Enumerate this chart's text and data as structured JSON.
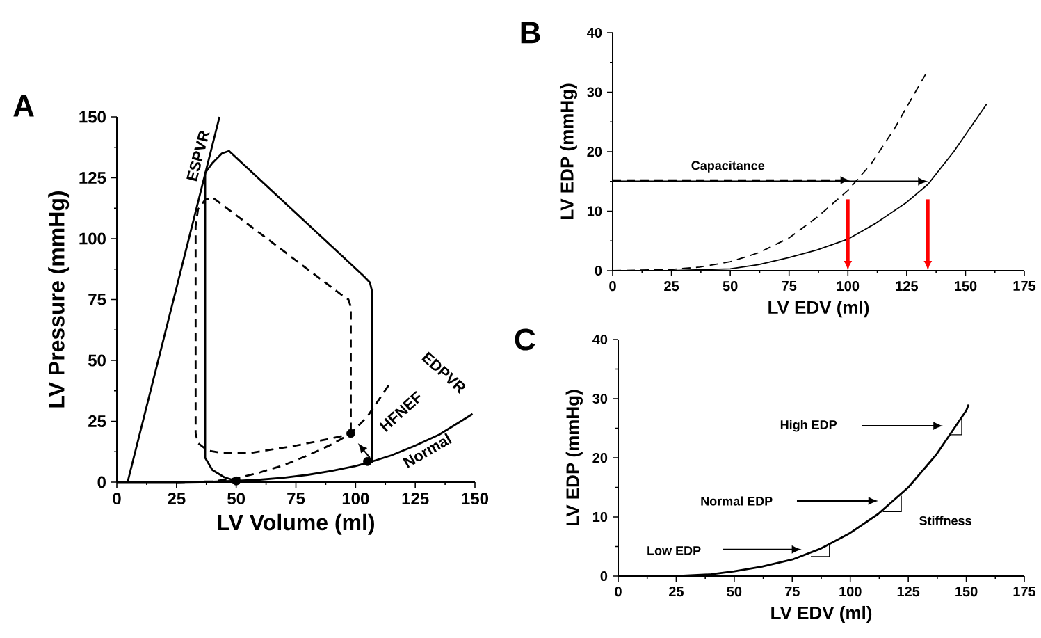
{
  "chart_data": [
    {
      "type": "line",
      "title": "A",
      "xlabel": "LV Volume (ml)",
      "ylabel": "LV Pressure (mmHg)",
      "xlim": [
        0,
        150
      ],
      "ylim": [
        0,
        150
      ],
      "xticks": [
        0,
        25,
        50,
        75,
        100,
        125,
        150
      ],
      "yticks": [
        0,
        25,
        50,
        75,
        100,
        125,
        150
      ],
      "series": [
        {
          "color": "#000000",
          "line_style": "solid",
          "x": [
            4.5,
            43
          ],
          "values": [
            0,
            150
          ]
        },
        {
          "color": "#000000",
          "line_style": "solid",
          "x": [
            0,
            25,
            40,
            50,
            60,
            70,
            80,
            90,
            100,
            107,
            115,
            125,
            135,
            149
          ],
          "values": [
            0,
            0,
            0.2,
            0.5,
            1,
            1.8,
            3,
            4.6,
            6.6,
            8.5,
            11,
            15,
            19.5,
            28
          ]
        },
        {
          "color": "#000000",
          "line_style": "dashed",
          "x": [
            25,
            40,
            50,
            60,
            70,
            80,
            90,
            98,
            105,
            114
          ],
          "values": [
            0,
            0.3,
            1.5,
            4,
            7,
            11,
            15.5,
            20,
            27,
            40
          ]
        },
        {
          "type": "scatter",
          "color": "#000000",
          "x": [
            50,
            98,
            105
          ],
          "values": [
            0.5,
            20,
            8.5
          ]
        },
        {
          "color": "#000000",
          "line_style": "solid",
          "x": [
            107,
            107,
            106,
            103,
            47,
            44,
            40,
            37,
            37,
            40,
            45,
            50
          ],
          "values": [
            8,
            78,
            82,
            85,
            136,
            135,
            131,
            127,
            10,
            5,
            2,
            0.5
          ]
        },
        {
          "color": "#000000",
          "line_style": "dashed",
          "x": [
            98,
            98,
            97,
            94,
            40,
            37,
            34,
            33,
            33,
            34,
            38,
            44,
            56,
            75,
            90,
            97
          ],
          "values": [
            21,
            72,
            75,
            77,
            117,
            116,
            112,
            105,
            20,
            16,
            13,
            12,
            12,
            15,
            18,
            19.5
          ]
        }
      ],
      "annotations": [
        "ESPVR",
        "EDPVR",
        "HFNEF",
        "Normal"
      ]
    },
    {
      "type": "line",
      "title": "B",
      "xlabel": "LV EDV (ml)",
      "ylabel": "LV EDP (mmHg)",
      "xlim": [
        0,
        175
      ],
      "ylim": [
        0,
        40
      ],
      "xticks": [
        0,
        25,
        50,
        75,
        100,
        125,
        150,
        175
      ],
      "yticks": [
        0,
        10,
        20,
        30,
        40
      ],
      "series": [
        {
          "color": "#000000",
          "line_style": "dashed",
          "x": [
            0,
            25,
            37,
            50,
            62,
            75,
            87,
            100,
            110,
            120,
            125,
            133
          ],
          "values": [
            0,
            0.2,
            0.6,
            1.5,
            3,
            5.5,
            9,
            13.5,
            18,
            24,
            27.5,
            33
          ]
        },
        {
          "color": "#000000",
          "line_style": "solid",
          "x": [
            0,
            25,
            50,
            62,
            75,
            87,
            100,
            112,
            125,
            134,
            145,
            159
          ],
          "values": [
            0,
            0,
            0.3,
            1,
            2.2,
            3.5,
            5.3,
            8,
            11.5,
            14.5,
            20,
            28
          ]
        }
      ],
      "annotations": [
        "Capacitance"
      ]
    },
    {
      "type": "line",
      "title": "C",
      "xlabel": "LV EDV (ml)",
      "ylabel": "LV EDP (mmHg)",
      "xlim": [
        0,
        175
      ],
      "ylim": [
        0,
        40
      ],
      "xticks": [
        0,
        25,
        50,
        75,
        100,
        125,
        150,
        175
      ],
      "yticks": [
        0,
        10,
        20,
        30,
        40
      ],
      "series": [
        {
          "color": "#000000",
          "line_style": "solid",
          "x": [
            0,
            25,
            40,
            50,
            62,
            75,
            87,
            100,
            112,
            125,
            137,
            150,
            151
          ],
          "values": [
            0,
            0,
            0.3,
            0.8,
            1.6,
            2.8,
            4.6,
            7.3,
            10.5,
            15,
            20.5,
            28,
            29
          ]
        }
      ],
      "annotations": [
        "Low EDP",
        "Normal EDP",
        "High EDP",
        "Stiffness"
      ]
    }
  ]
}
